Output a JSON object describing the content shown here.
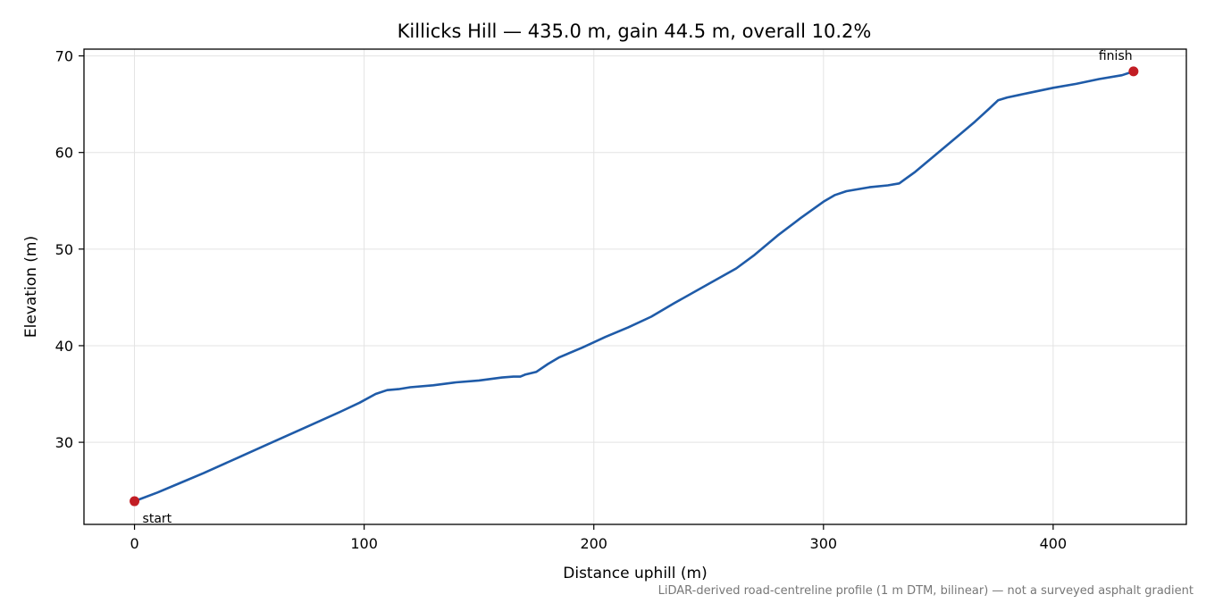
{
  "chart_data": {
    "type": "line",
    "title": "Killicks Hill — 435.0 m, gain 44.5 m, overall 10.2%",
    "xlabel": "Distance uphill (m)",
    "ylabel": "Elevation (m)",
    "xlim": [
      -22,
      458
    ],
    "ylim": [
      21.5,
      70.7
    ],
    "xticks": [
      0,
      100,
      200,
      300,
      400
    ],
    "yticks": [
      30,
      40,
      50,
      60,
      70
    ],
    "grid": true,
    "series": [
      {
        "color": "#1f5ba8",
        "points": [
          [
            0,
            23.9
          ],
          [
            10,
            24.8
          ],
          [
            20,
            25.8
          ],
          [
            30,
            26.8
          ],
          [
            45,
            28.4
          ],
          [
            60,
            30.0
          ],
          [
            75,
            31.6
          ],
          [
            90,
            33.2
          ],
          [
            98,
            34.1
          ],
          [
            105,
            35.0
          ],
          [
            110,
            35.4
          ],
          [
            115,
            35.5
          ],
          [
            120,
            35.7
          ],
          [
            130,
            35.9
          ],
          [
            140,
            36.2
          ],
          [
            150,
            36.4
          ],
          [
            160,
            36.7
          ],
          [
            165,
            36.8
          ],
          [
            168,
            36.8
          ],
          [
            170,
            37.0
          ],
          [
            175,
            37.3
          ],
          [
            180,
            38.1
          ],
          [
            185,
            38.8
          ],
          [
            195,
            39.8
          ],
          [
            205,
            40.9
          ],
          [
            215,
            41.9
          ],
          [
            225,
            43.0
          ],
          [
            235,
            44.4
          ],
          [
            250,
            46.4
          ],
          [
            262,
            48.0
          ],
          [
            270,
            49.4
          ],
          [
            280,
            51.4
          ],
          [
            290,
            53.2
          ],
          [
            300,
            54.9
          ],
          [
            305,
            55.6
          ],
          [
            310,
            56.0
          ],
          [
            320,
            56.4
          ],
          [
            328,
            56.6
          ],
          [
            333,
            56.8
          ],
          [
            340,
            58.0
          ],
          [
            350,
            60.0
          ],
          [
            360,
            62.0
          ],
          [
            363,
            62.6
          ],
          [
            366,
            63.2
          ],
          [
            372,
            64.5
          ],
          [
            376,
            65.4
          ],
          [
            380,
            65.7
          ],
          [
            390,
            66.2
          ],
          [
            400,
            66.7
          ],
          [
            410,
            67.1
          ],
          [
            420,
            67.6
          ],
          [
            430,
            68.0
          ],
          [
            435,
            68.4
          ]
        ]
      }
    ],
    "markers": [
      {
        "x": 0,
        "y": 23.9,
        "label": "start",
        "color": "#c21d24"
      },
      {
        "x": 435,
        "y": 68.4,
        "label": "finish",
        "color": "#c21d24"
      }
    ],
    "footnote": "LiDAR-derived road-centreline profile (1 m DTM, bilinear) — not a surveyed asphalt gradient"
  }
}
